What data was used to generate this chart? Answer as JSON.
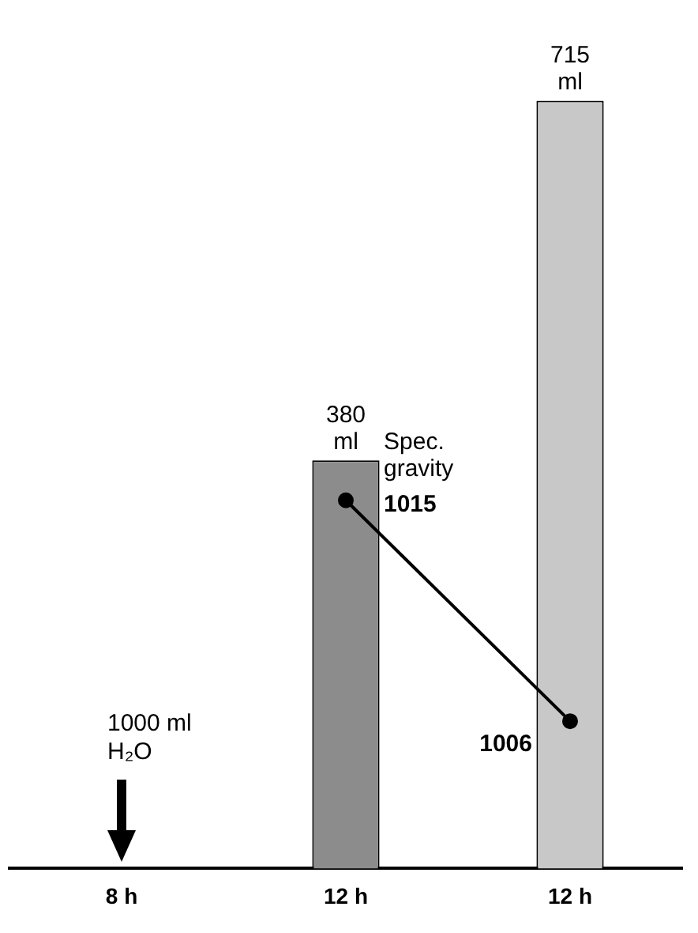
{
  "chart_data": {
    "type": "bar",
    "categories": [
      "8 h",
      "12 h",
      "12 h"
    ],
    "series": [
      {
        "colors": [
          null,
          "#8c8c8c",
          "#c8c8c8"
        ],
        "values": [
          null,
          380,
          715
        ],
        "value_labels": [
          null,
          "380 ml",
          "715 ml"
        ]
      },
      {
        "type": "line",
        "name": "Spec. gravity",
        "color": "#000000",
        "axis": "y2",
        "values": [
          null,
          1015,
          1006
        ],
        "value_labels": [
          null,
          "1015",
          "1006"
        ]
      }
    ],
    "annotations": [
      "1000 ml H₂O"
    ],
    "marker": "circle",
    "line_style": "solid",
    "legend": false,
    "grid": false,
    "tick_labels": "x"
  }
}
